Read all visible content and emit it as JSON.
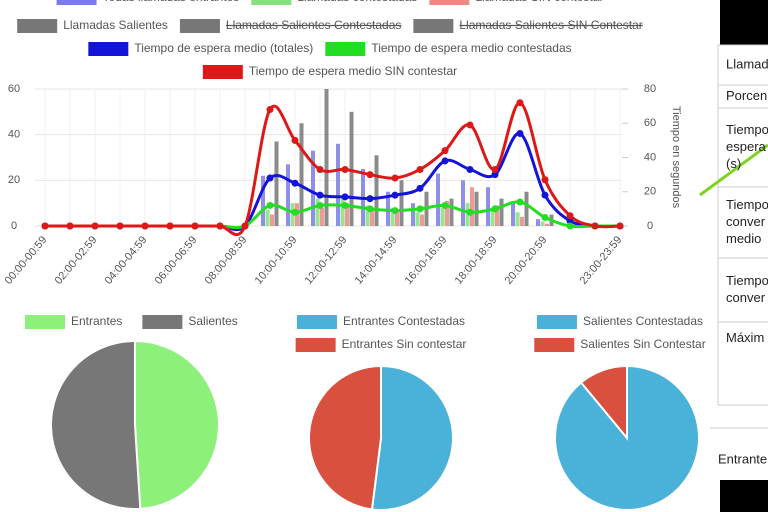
{
  "chart_data": [
    {
      "type": "bar",
      "categories": [
        "00:00-00:59",
        null,
        "02:00-02:59",
        null,
        "04:00-04:59",
        null,
        "06:00-06:59",
        null,
        "08:00-08:59",
        null,
        "10:00-10:59",
        null,
        "12:00-12:59",
        null,
        "14:00-14:59",
        null,
        "16:00-16:59",
        null,
        "18:00-18:59",
        null,
        "20:00-20:59",
        null,
        null,
        "23:00-23:59"
      ],
      "ylim": [
        0,
        60
      ],
      "yticks": [
        0,
        20,
        40,
        60
      ],
      "y2lim": [
        0,
        80
      ],
      "y2ticks": [
        0,
        20,
        40,
        60,
        80
      ],
      "y2label": "Tiempo en segundos",
      "grid": true,
      "series": [
        {
          "name": "Todas llamadas entrantes",
          "color": "#7b7be6",
          "values": [
            0,
            0,
            0,
            0,
            0,
            0,
            0,
            0,
            0,
            22,
            27,
            33,
            36,
            25,
            15,
            10,
            23,
            20,
            17,
            10,
            3,
            0,
            0,
            0
          ]
        },
        {
          "name": "Llamadas contestadas",
          "color": "#86e07e",
          "values": [
            0,
            0,
            0,
            0,
            0,
            0,
            0,
            0,
            0,
            7,
            10,
            12,
            12,
            9,
            8,
            6,
            8,
            10,
            8,
            6,
            2,
            0,
            0,
            0
          ]
        },
        {
          "name": "Llamadas SIN contestar",
          "color": "#e98a84",
          "values": [
            0,
            0,
            0,
            0,
            0,
            0,
            0,
            0,
            0,
            5,
            10,
            8,
            10,
            8,
            6,
            5,
            11,
            17,
            9,
            4,
            1,
            0,
            0,
            0
          ]
        },
        {
          "name": "Llamadas Salientes",
          "color": "#777777",
          "values": [
            0,
            0,
            0,
            0,
            0,
            0,
            0,
            0,
            0,
            37,
            45,
            60,
            50,
            31,
            20,
            15,
            12,
            15,
            12,
            15,
            5,
            0,
            0,
            0
          ]
        },
        {
          "name": "Llamadas Salientes Contestadas",
          "color": "#777777",
          "hidden": true
        },
        {
          "name": "Llamadas Salientes SIN Contestar",
          "color": "#777777",
          "hidden": true
        },
        {
          "name": "Tiempo de espera medio (totales)",
          "color": "#1414d8",
          "type": "line",
          "axis": "y2",
          "values": [
            0,
            0,
            0,
            0,
            0,
            0,
            0,
            0,
            0,
            28,
            25,
            18,
            17,
            16,
            18,
            22,
            38,
            33,
            30,
            54,
            18,
            3,
            0,
            0
          ]
        },
        {
          "name": "Tiempo de espera medio contestadas",
          "color": "#22dd22",
          "type": "line",
          "axis": "y2",
          "values": [
            0,
            0,
            0,
            0,
            0,
            0,
            0,
            0,
            0,
            12,
            8,
            12,
            12,
            10,
            9,
            10,
            12,
            8,
            10,
            14,
            5,
            0,
            0,
            0
          ]
        },
        {
          "name": "Tiempo de espera medio SIN contestar",
          "color": "#dd1818",
          "type": "line",
          "axis": "y2",
          "values": [
            0,
            0,
            0,
            0,
            0,
            0,
            0,
            0,
            0,
            68,
            50,
            33,
            33,
            30,
            28,
            33,
            44,
            59,
            33,
            72,
            27,
            6,
            0,
            0
          ]
        }
      ]
    },
    {
      "type": "pie",
      "categories": [
        "Entrantes",
        "Salientes"
      ],
      "values": [
        49,
        51
      ],
      "colors": [
        "#8cf07a",
        "#777777"
      ]
    },
    {
      "type": "pie",
      "categories": [
        "Entrantes Contestadas",
        "Entrantes Sin contestar"
      ],
      "values": [
        52,
        48
      ],
      "colors": [
        "#4ab2d8",
        "#d9503f"
      ]
    },
    {
      "type": "pie",
      "categories": [
        "Salientes Contestadas",
        "Salientes Sin Contestar"
      ],
      "values": [
        89,
        11
      ],
      "colors": [
        "#4ab2d8",
        "#d9503f"
      ]
    }
  ],
  "table": {
    "rows": [
      {
        "lines": [
          "Llamad"
        ]
      },
      {
        "lines": [
          "Porcen"
        ]
      },
      {
        "lines": [
          "Tiempo",
          "espera",
          "(s)"
        ]
      },
      {
        "lines": [
          "Tiempo",
          "conver",
          "medio"
        ]
      },
      {
        "lines": [
          "Tiempo",
          "conver"
        ]
      },
      {
        "lines": [
          "Máxim"
        ]
      }
    ],
    "footer": "Entrante"
  }
}
